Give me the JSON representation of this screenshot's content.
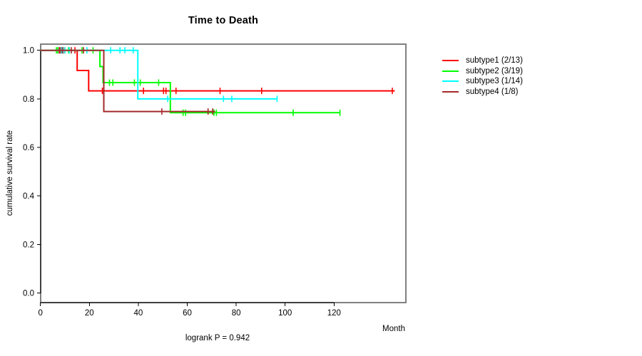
{
  "chart_data": {
    "type": "line",
    "subtype": "kaplan-meier-step",
    "title": "Time to Death",
    "xlabel": "Month",
    "ylabel": "cumulative survival rate",
    "annotation": "logrank P = 0.942",
    "xlim": [
      0,
      149
    ],
    "ylim": [
      0,
      1.04
    ],
    "x_ticks": [
      0,
      20,
      40,
      60,
      80,
      100,
      120
    ],
    "y_ticks": [
      0,
      0.2,
      0.4,
      0.6,
      0.8,
      1
    ],
    "grid": false,
    "legend_position": "right-outside",
    "frame_color": "#808080",
    "axis_color": "#000000",
    "series": [
      {
        "name": "subtype1 (2/13)",
        "color": "#FF0000",
        "events": 2,
        "n": 13,
        "steps": [
          [
            0,
            1
          ],
          [
            15,
            1
          ],
          [
            15,
            0.917
          ],
          [
            19.7,
            0.917
          ],
          [
            19.7,
            0.833
          ],
          [
            144.8,
            0.833
          ]
        ],
        "censors": [
          [
            8,
            1
          ],
          [
            9.4,
            1
          ],
          [
            14.1,
            1
          ],
          [
            25.3,
            0.833
          ],
          [
            42.1,
            0.833
          ],
          [
            50.3,
            0.833
          ],
          [
            51.3,
            0.833
          ],
          [
            55.4,
            0.833
          ],
          [
            73.4,
            0.833
          ],
          [
            90.4,
            0.833
          ],
          [
            143.8,
            0.833
          ]
        ]
      },
      {
        "name": "subtype2 (3/19)",
        "color": "#00FF00",
        "events": 3,
        "n": 19,
        "steps": [
          [
            0,
            1
          ],
          [
            24.3,
            1
          ],
          [
            24.3,
            0.933
          ],
          [
            25.6,
            0.933
          ],
          [
            25.6,
            0.867
          ],
          [
            53.1,
            0.867
          ],
          [
            53.1,
            0.743
          ],
          [
            122.4,
            0.743
          ]
        ],
        "censors": [
          [
            6.5,
            1
          ],
          [
            7.1,
            1
          ],
          [
            11.5,
            1
          ],
          [
            17,
            1
          ],
          [
            21.5,
            1
          ],
          [
            28.2,
            0.867
          ],
          [
            29.6,
            0.867
          ],
          [
            38.4,
            0.867
          ],
          [
            40.8,
            0.867
          ],
          [
            48.3,
            0.867
          ],
          [
            58.3,
            0.743
          ],
          [
            59.3,
            0.743
          ],
          [
            70.9,
            0.743
          ],
          [
            71.9,
            0.743
          ],
          [
            103.3,
            0.743
          ],
          [
            122.4,
            0.743
          ]
        ]
      },
      {
        "name": "subtype3 (1/14)",
        "color": "#00FFFF",
        "events": 1,
        "n": 14,
        "steps": [
          [
            0,
            1
          ],
          [
            39.8,
            1
          ],
          [
            39.8,
            0.8
          ],
          [
            96.7,
            0.8
          ]
        ],
        "censors": [
          [
            8.5,
            1
          ],
          [
            9.2,
            1
          ],
          [
            10,
            1
          ],
          [
            11.8,
            1
          ],
          [
            19,
            1
          ],
          [
            28.7,
            1
          ],
          [
            32.5,
            1
          ],
          [
            34.5,
            1
          ],
          [
            37.9,
            1
          ],
          [
            52,
            0.8
          ],
          [
            74.8,
            0.8
          ],
          [
            78.2,
            0.8
          ],
          [
            96.7,
            0.8
          ]
        ]
      },
      {
        "name": "subtype4 (1/8)",
        "color": "#A52A2A",
        "events": 1,
        "n": 8,
        "steps": [
          [
            0,
            1
          ],
          [
            25.9,
            1
          ],
          [
            25.9,
            0.748
          ],
          [
            71.4,
            0.748
          ]
        ],
        "censors": [
          [
            7.7,
            1
          ],
          [
            8.9,
            1
          ],
          [
            12.6,
            1
          ],
          [
            17.6,
            1
          ],
          [
            49.6,
            0.748
          ],
          [
            68.5,
            0.748
          ],
          [
            70.4,
            0.748
          ]
        ]
      }
    ]
  }
}
